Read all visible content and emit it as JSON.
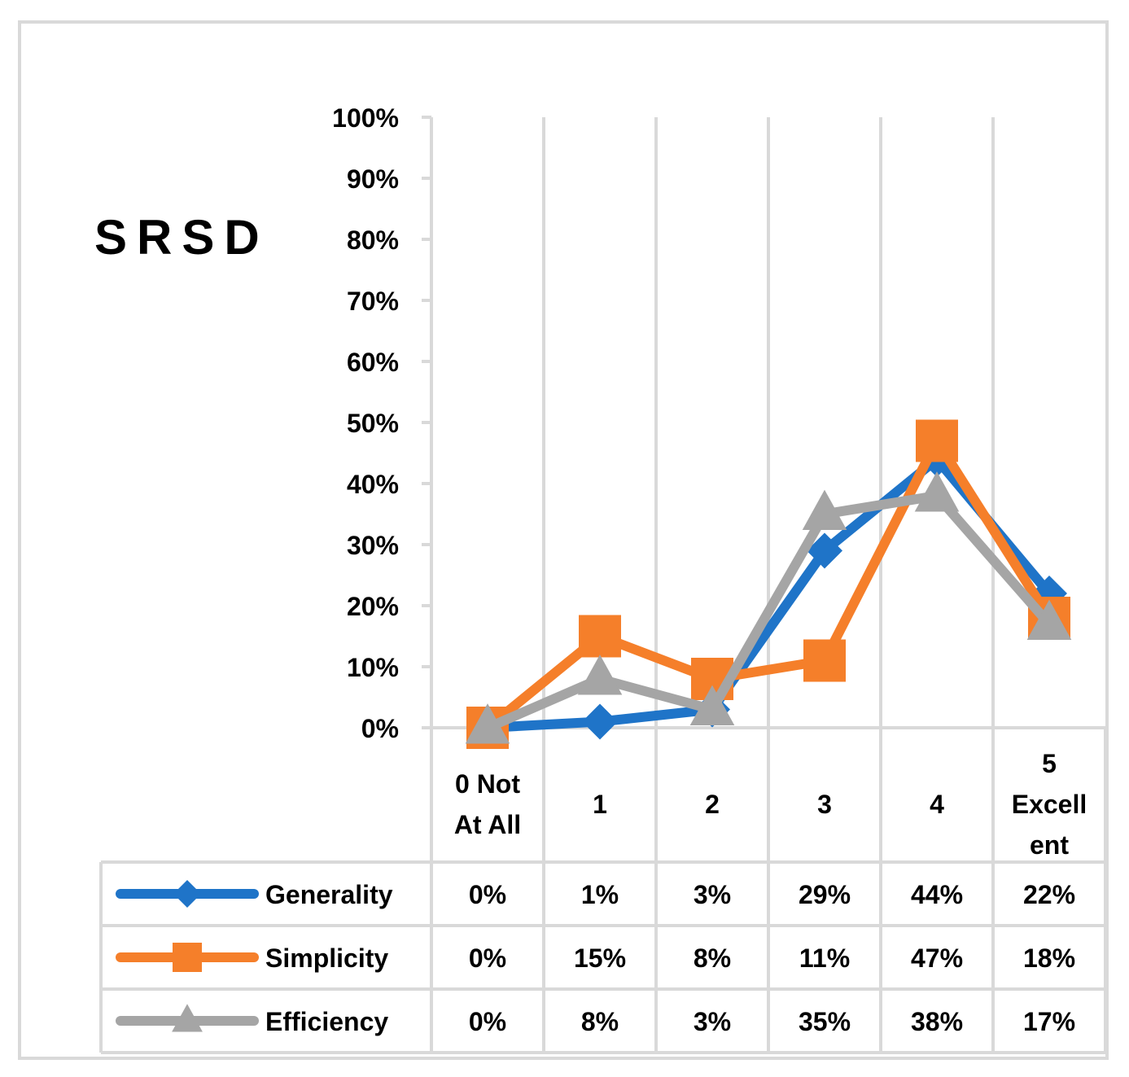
{
  "chart_data": {
    "type": "line",
    "title": "SRSD",
    "categories": [
      [
        "0 Not",
        "At All"
      ],
      [
        "1"
      ],
      [
        "2"
      ],
      [
        "3"
      ],
      [
        "4"
      ],
      [
        "5",
        "Excell",
        "ent"
      ]
    ],
    "y_ticks": [
      "100%",
      "90%",
      "80%",
      "70%",
      "60%",
      "50%",
      "40%",
      "30%",
      "20%",
      "10%",
      "0%"
    ],
    "ylim": [
      0,
      100
    ],
    "grid": true,
    "legend": "data-table-left",
    "series": [
      {
        "name": "Generality",
        "values": [
          0,
          1,
          3,
          29,
          44,
          22
        ],
        "labels": [
          "0%",
          "1%",
          "3%",
          "29%",
          "44%",
          "22%"
        ],
        "marker": "diamond",
        "color": "#1F74C8"
      },
      {
        "name": "Simplicity",
        "values": [
          0,
          15,
          8,
          11,
          47,
          18
        ],
        "labels": [
          "0%",
          "15%",
          "8%",
          "11%",
          "47%",
          "18%"
        ],
        "marker": "square",
        "color": "#F57F2A"
      },
      {
        "name": "Efficiency",
        "values": [
          0,
          8,
          3,
          35,
          38,
          17
        ],
        "labels": [
          "0%",
          "8%",
          "3%",
          "35%",
          "38%",
          "17%"
        ],
        "marker": "triangle",
        "color": "#A5A5A5"
      }
    ]
  },
  "colors": {
    "border": "#D9D9D9",
    "grid": "#D9D9D9"
  }
}
